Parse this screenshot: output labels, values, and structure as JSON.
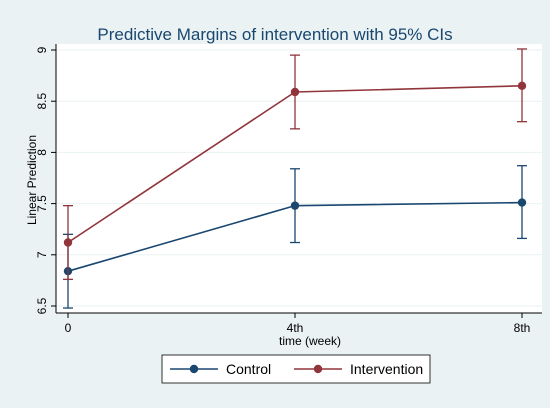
{
  "chart_data": {
    "type": "line",
    "title": "Predictive Margins of intervention with 95% CIs",
    "xlabel": "time (week)",
    "ylabel": "Linear Prediction",
    "categories": [
      "0",
      "4th",
      "8th"
    ],
    "ylim": [
      6.5,
      9
    ],
    "yticks": [
      "6.5",
      "7",
      "7.5",
      "8",
      "8.5",
      "9"
    ],
    "grid": true,
    "legend_position": "bottom",
    "series": [
      {
        "name": "Control",
        "color": "#1a476f",
        "values": [
          6.84,
          7.48,
          7.51
        ],
        "ci_low": [
          6.48,
          7.12,
          7.16
        ],
        "ci_high": [
          7.2,
          7.84,
          7.87
        ]
      },
      {
        "name": "Intervention",
        "color": "#90353b",
        "values": [
          7.12,
          8.59,
          8.65
        ],
        "ci_low": [
          6.76,
          8.23,
          8.3
        ],
        "ci_high": [
          7.48,
          8.95,
          9.01
        ]
      }
    ]
  }
}
